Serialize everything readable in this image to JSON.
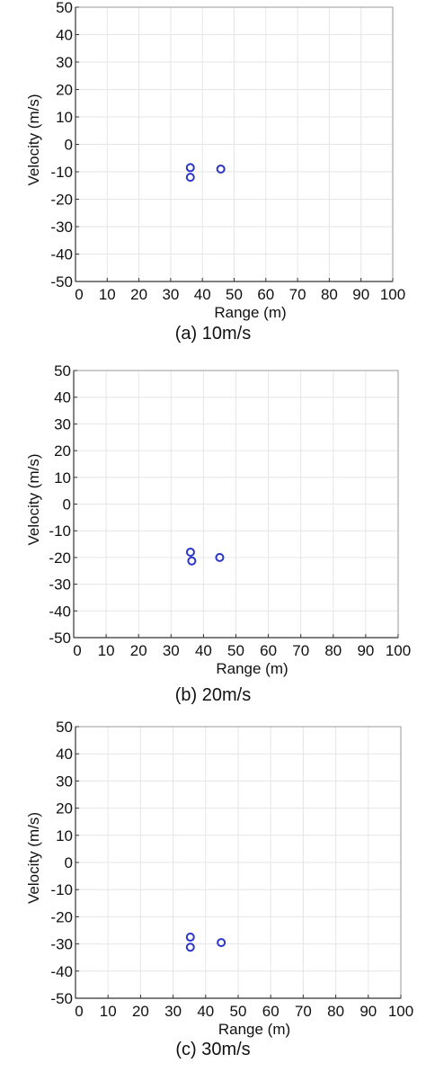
{
  "chart_data": [
    {
      "type": "scatter",
      "caption": "(a) 10m/s",
      "xlabel": "Range (m)",
      "ylabel": "Velocity (m/s)",
      "xlim": [
        0,
        100
      ],
      "ylim": [
        -50,
        50
      ],
      "xticks": [
        0,
        10,
        20,
        30,
        40,
        50,
        60,
        70,
        80,
        90,
        100
      ],
      "yticks": [
        50,
        40,
        30,
        20,
        10,
        0,
        -10,
        -20,
        -30,
        -40,
        -50
      ],
      "grid": true,
      "marker": "circle-open",
      "color": "#2b35c9",
      "points": [
        {
          "x": 36.2,
          "y": -8.5
        },
        {
          "x": 36.2,
          "y": -12.0
        },
        {
          "x": 45.8,
          "y": -9.0
        }
      ]
    },
    {
      "type": "scatter",
      "caption": "(b) 20m/s",
      "xlabel": "Range (m)",
      "ylabel": "Velocity (m/s)",
      "xlim": [
        0,
        100
      ],
      "ylim": [
        -50,
        50
      ],
      "xticks": [
        0,
        10,
        20,
        30,
        40,
        50,
        60,
        70,
        80,
        90,
        100
      ],
      "yticks": [
        50,
        40,
        30,
        20,
        10,
        0,
        -10,
        -20,
        -30,
        -40,
        -50
      ],
      "grid": true,
      "marker": "circle-open",
      "color": "#2b35c9",
      "points": [
        {
          "x": 36.0,
          "y": -18.0
        },
        {
          "x": 36.4,
          "y": -21.3
        },
        {
          "x": 45.0,
          "y": -20.0
        }
      ]
    },
    {
      "type": "scatter",
      "caption": "(c) 30m/s",
      "xlabel": "Range (m)",
      "ylabel": "Velocity (m/s)",
      "xlim": [
        0,
        100
      ],
      "ylim": [
        -50,
        50
      ],
      "xticks": [
        0,
        10,
        20,
        30,
        40,
        50,
        60,
        70,
        80,
        90,
        100
      ],
      "yticks": [
        50,
        40,
        30,
        20,
        10,
        0,
        -10,
        -20,
        -30,
        -40,
        -50
      ],
      "grid": true,
      "marker": "circle-open",
      "color": "#2b35c9",
      "points": [
        {
          "x": 35.3,
          "y": -27.5
        },
        {
          "x": 35.3,
          "y": -31.2
        },
        {
          "x": 44.8,
          "y": -29.5
        }
      ]
    }
  ]
}
